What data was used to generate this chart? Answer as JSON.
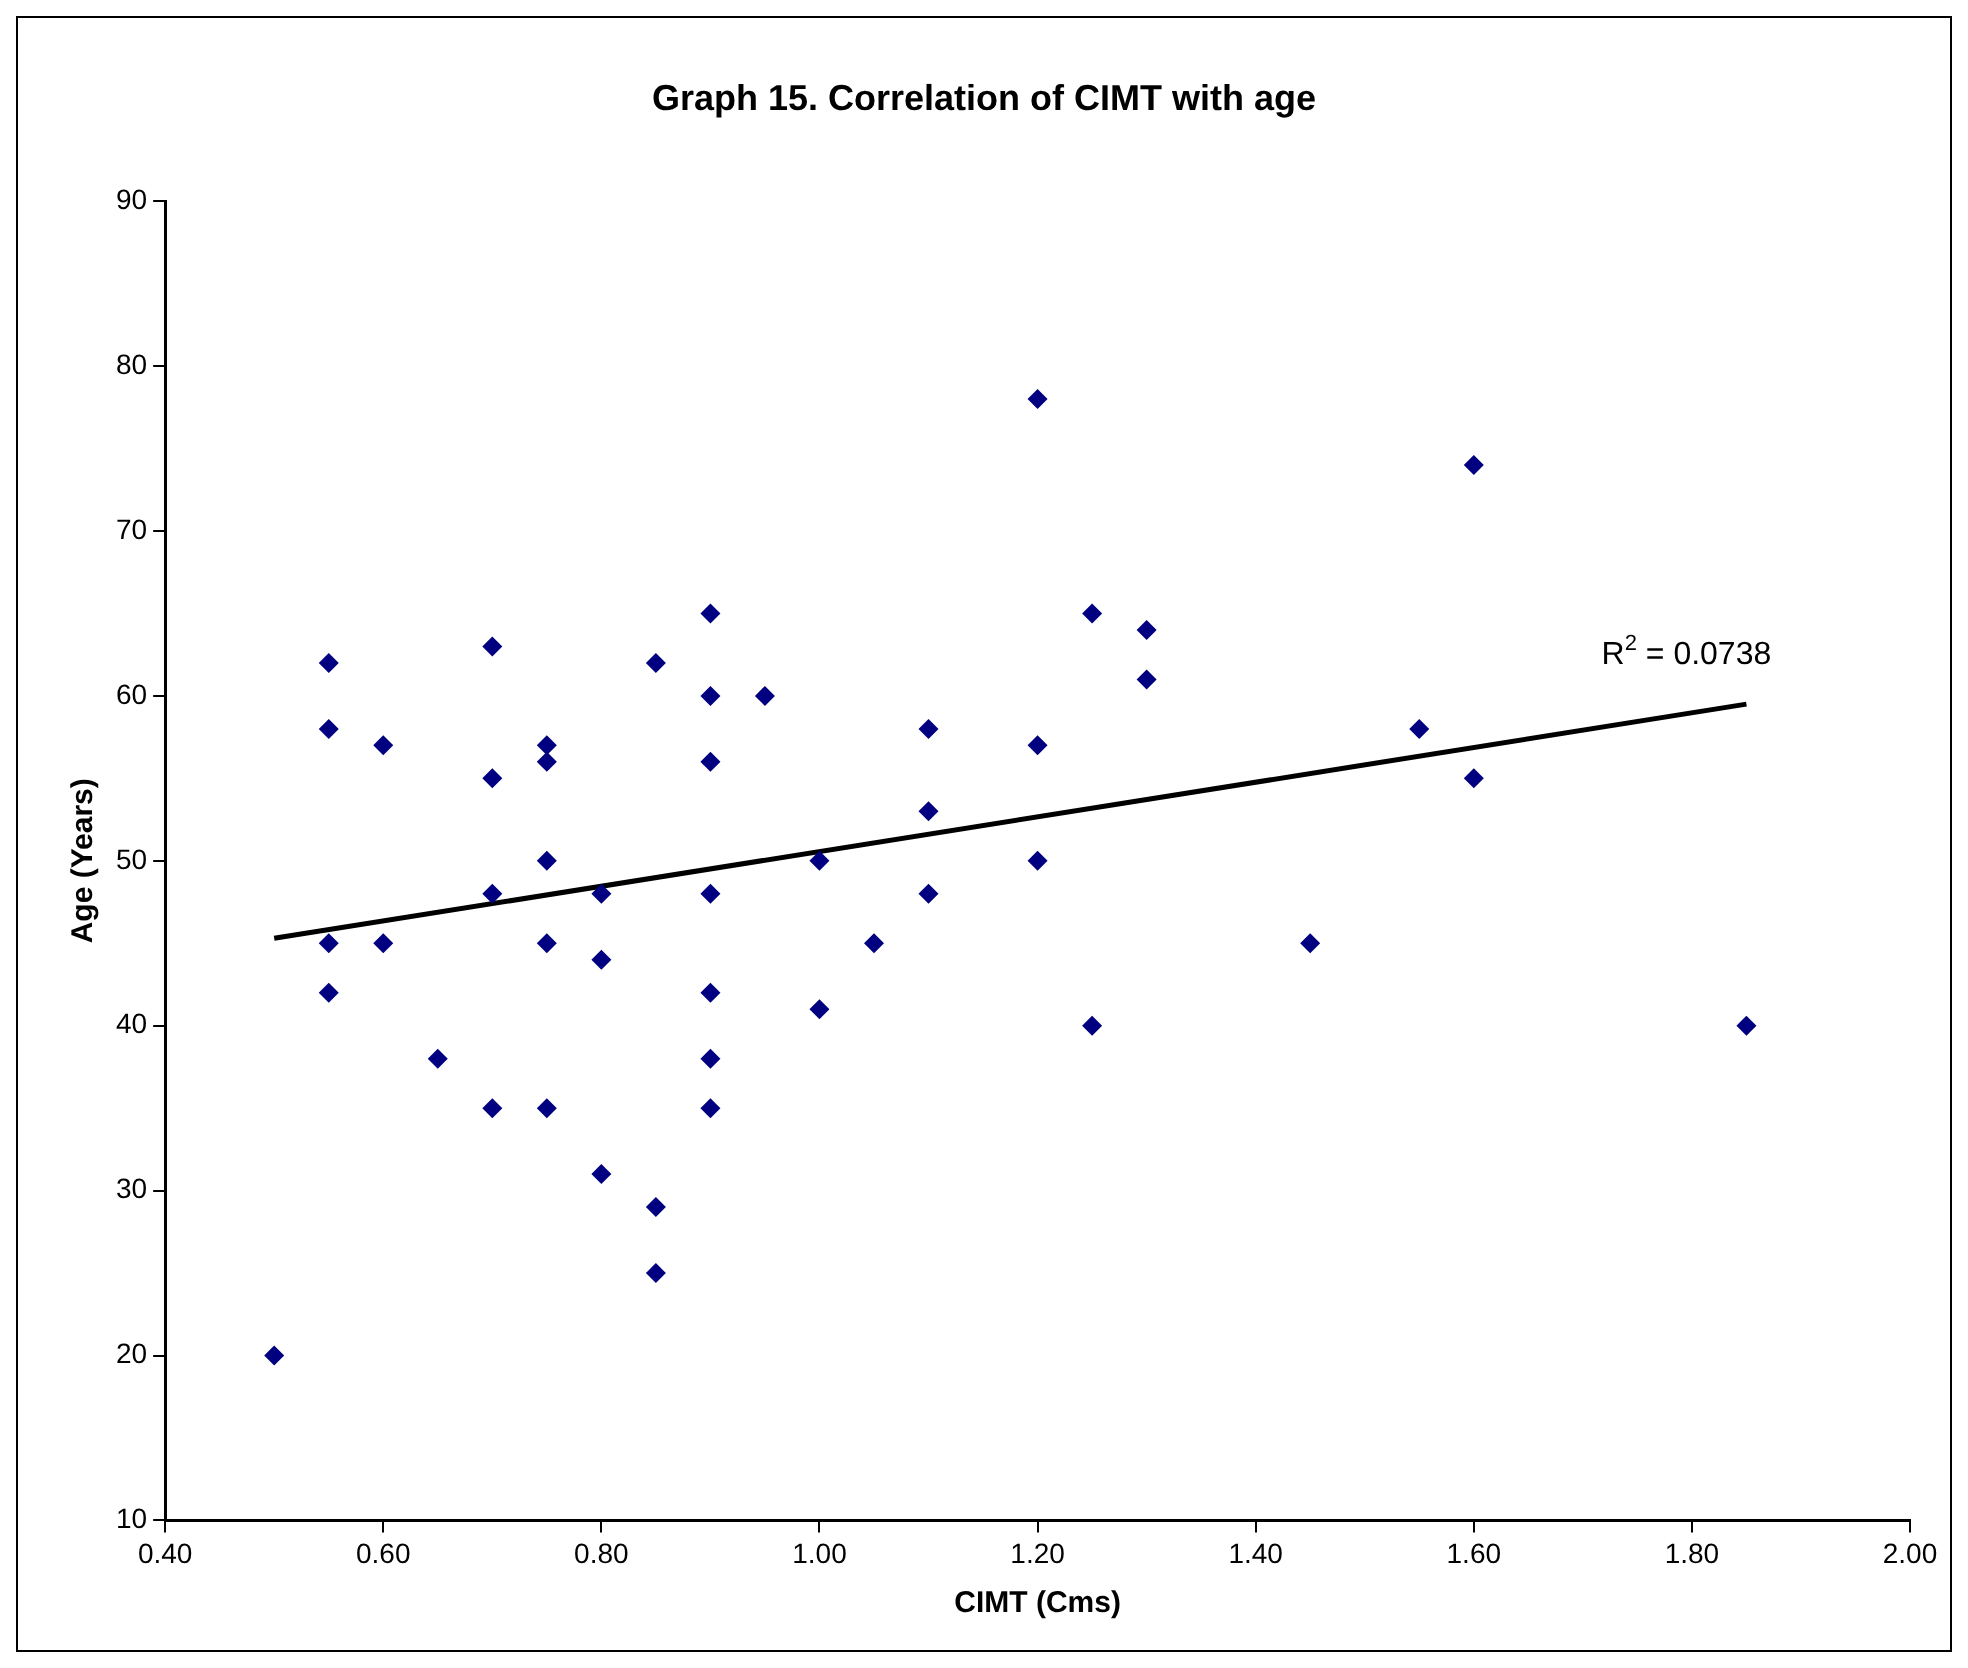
{
  "chart_data": {
    "type": "scatter",
    "title": "Graph 15. Correlation of CIMT with age",
    "xlabel": "CIMT (Cms)",
    "ylabel": "Age (Years)",
    "xlim": [
      0.4,
      2.0
    ],
    "xticks": [
      {
        "value": 0.4,
        "label": "0.40"
      },
      {
        "value": 0.6,
        "label": "0.60"
      },
      {
        "value": 0.8,
        "label": "0.80"
      },
      {
        "value": 1.0,
        "label": "1.00"
      },
      {
        "value": 1.2,
        "label": "1.20"
      },
      {
        "value": 1.4,
        "label": "1.40"
      },
      {
        "value": 1.6,
        "label": "1.60"
      },
      {
        "value": 1.8,
        "label": "1.80"
      },
      {
        "value": 2.0,
        "label": "2.00"
      }
    ],
    "ylim": [
      10,
      90
    ],
    "yticks": [
      10,
      20,
      30,
      40,
      50,
      60,
      70,
      80,
      90
    ],
    "grid": false,
    "legend": false,
    "marker": "diamond",
    "series": [
      {
        "type": "scatter",
        "color": "#000080",
        "x": [
          0.5,
          0.55,
          0.55,
          0.55,
          0.55,
          0.6,
          0.6,
          0.65,
          0.7,
          0.7,
          0.7,
          0.7,
          0.75,
          0.75,
          0.75,
          0.75,
          0.75,
          0.8,
          0.8,
          0.8,
          0.85,
          0.85,
          0.85,
          0.9,
          0.9,
          0.9,
          0.9,
          0.9,
          0.9,
          0.9,
          0.95,
          1.0,
          1.0,
          1.05,
          1.1,
          1.1,
          1.1,
          1.2,
          1.2,
          1.2,
          1.25,
          1.25,
          1.3,
          1.3,
          1.45,
          1.55,
          1.6,
          1.6,
          1.85
        ],
        "values": [
          20,
          62,
          58,
          45,
          42,
          57,
          45,
          38,
          63,
          55,
          48,
          35,
          57,
          56,
          50,
          45,
          35,
          48,
          44,
          31,
          62,
          29,
          25,
          65,
          60,
          56,
          48,
          42,
          38,
          35,
          60,
          50,
          41,
          45,
          58,
          53,
          48,
          78,
          57,
          50,
          65,
          40,
          64,
          61,
          45,
          58,
          74,
          55,
          40
        ]
      },
      {
        "type": "line",
        "color": "#000000",
        "marker": "none",
        "line_style": "solid",
        "x": [
          0.5,
          1.85
        ],
        "values": [
          45.3,
          59.5
        ]
      }
    ],
    "annotations": [
      "R$^{2}$ = 0.0738"
    ]
  }
}
